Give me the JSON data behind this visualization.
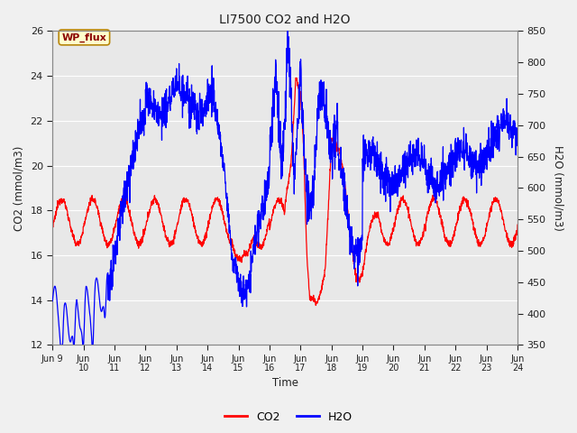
{
  "title": "LI7500 CO2 and H2O",
  "xlabel": "Time",
  "ylabel_left": "CO2 (mmol/m3)",
  "ylabel_right": "H2O (mmol/m3)",
  "xlim": [
    0,
    15
  ],
  "ylim_left": [
    12,
    26
  ],
  "ylim_right": [
    350,
    850
  ],
  "yticks_left": [
    12,
    14,
    16,
    18,
    20,
    22,
    24,
    26
  ],
  "yticks_right": [
    350,
    400,
    450,
    500,
    550,
    600,
    650,
    700,
    750,
    800,
    850
  ],
  "xtick_labels": [
    "Jun 9",
    "Jun\n10",
    "Jun\n11",
    "Jun\n12",
    "Jun\n13",
    "Jun\n14",
    "Jun\n15",
    "Jun\n16",
    "Jun\n17",
    "Jun\n18",
    "Jun\n19",
    "Jun\n20",
    "Jun\n21",
    "Jun\n22",
    "Jun\n23",
    "Jun\n24"
  ],
  "color_co2": "#FF0000",
  "color_h2o": "#0000FF",
  "fig_bg_color": "#F0F0F0",
  "plot_bg_color": "#E8E8E8",
  "annotation_text": "WP_flux",
  "grid_color": "#FFFFFF",
  "legend_co2": "CO2",
  "legend_h2o": "H2O"
}
